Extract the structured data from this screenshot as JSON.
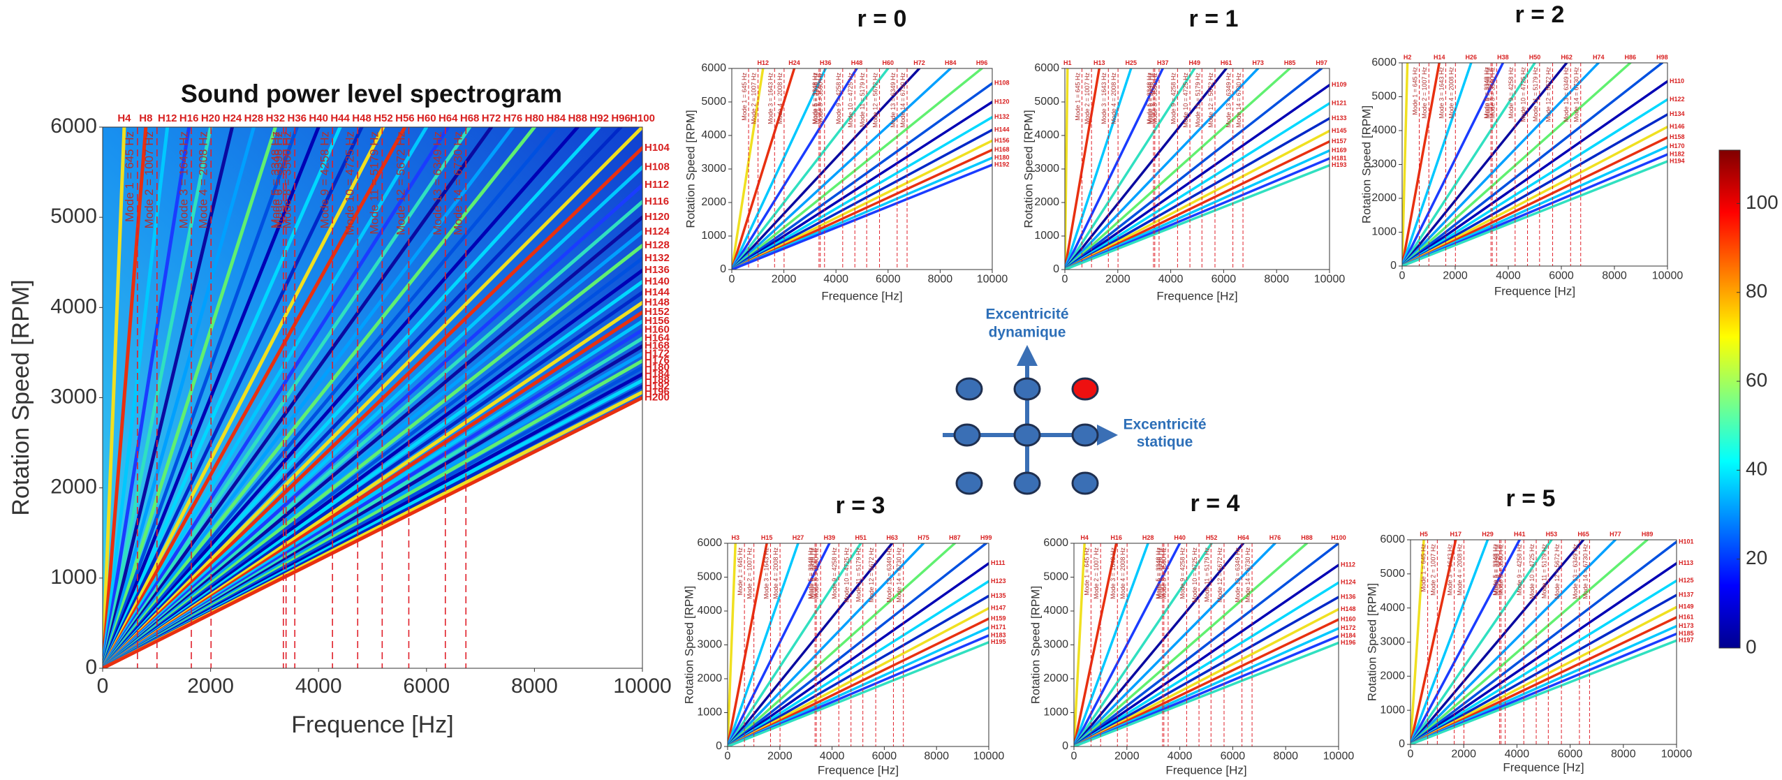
{
  "chart_data": [
    {
      "type": "spectrogram",
      "title": "Sound power level spectrogram",
      "x_label": "Frequence [Hz]",
      "y_label": "Rotation Speed [RPM]",
      "xlim": [
        0,
        10000
      ],
      "ylim": [
        0,
        6000
      ],
      "xticks": [
        0,
        2000,
        4000,
        6000,
        8000,
        10000
      ],
      "yticks": [
        0,
        1000,
        2000,
        3000,
        4000,
        5000,
        6000
      ],
      "orders": [
        4,
        8,
        12,
        16,
        20,
        24,
        28,
        32,
        36,
        40,
        44,
        48,
        52,
        56,
        60,
        64,
        68,
        72,
        76,
        80,
        84,
        88,
        92,
        96,
        100,
        104,
        108,
        112,
        116,
        120,
        124,
        128,
        132,
        136,
        140,
        144,
        148,
        152,
        156,
        160,
        164,
        168,
        172,
        176,
        180,
        184,
        188,
        192,
        196,
        200
      ],
      "order_labels": [
        "H4",
        "H8",
        "H12",
        "H16",
        "H20",
        "H24",
        "H28",
        "H32",
        "H36",
        "H40",
        "H44",
        "H48",
        "H52",
        "H56",
        "H60",
        "H64",
        "H68",
        "H72",
        "H76",
        "H80",
        "H84",
        "H88",
        "H92",
        "H96",
        "H100",
        "H104",
        "H108",
        "H112",
        "H116",
        "H120",
        "H124",
        "H128",
        "H132",
        "H136",
        "H140",
        "H144",
        "H148",
        "H152",
        "H156",
        "H160",
        "H164",
        "H168",
        "H172",
        "H176",
        "H180",
        "H184",
        "H188",
        "H192",
        "H196",
        "H200"
      ],
      "background": true
    },
    {
      "type": "spectrogram",
      "title": "r = 0",
      "x_label": "Frequence [Hz]",
      "y_label": "Rotation Speed [RPM]",
      "xlim": [
        0,
        10000
      ],
      "ylim": [
        0,
        6000
      ],
      "xticks": [
        0,
        2000,
        4000,
        6000,
        8000,
        10000
      ],
      "yticks": [
        0,
        1000,
        2000,
        3000,
        4000,
        5000,
        6000
      ],
      "orders": [
        12,
        24,
        36,
        48,
        60,
        72,
        84,
        96,
        108,
        120,
        132,
        144,
        156,
        168,
        180,
        192
      ],
      "order_labels": [
        "H12",
        "H24",
        "H36",
        "H48",
        "H60",
        "H72",
        "H84",
        "H96",
        "H108",
        "H120",
        "H132",
        "H144",
        "H156",
        "H168",
        "H180",
        "H192"
      ],
      "background": false
    },
    {
      "type": "spectrogram",
      "title": "r = 1",
      "x_label": "Frequence [Hz]",
      "y_label": "Rotation Speed [RPM]",
      "xlim": [
        0,
        10000
      ],
      "ylim": [
        0,
        6000
      ],
      "xticks": [
        0,
        2000,
        4000,
        6000,
        8000,
        10000
      ],
      "yticks": [
        0,
        1000,
        2000,
        3000,
        4000,
        5000,
        6000
      ],
      "orders": [
        1,
        13,
        25,
        37,
        49,
        61,
        73,
        85,
        97,
        109,
        121,
        133,
        145,
        157,
        169,
        181,
        193
      ],
      "order_labels": [
        "H1",
        "H13",
        "H25",
        "H37",
        "H49",
        "H61",
        "H73",
        "H85",
        "H97",
        "H109",
        "H121",
        "H133",
        "H145",
        "H157",
        "H169",
        "H181",
        "H193"
      ],
      "background": false
    },
    {
      "type": "spectrogram",
      "title": "r = 2",
      "x_label": "Frequence [Hz]",
      "y_label": "Rotation Speed [RPM]",
      "xlim": [
        0,
        10000
      ],
      "ylim": [
        0,
        6000
      ],
      "xticks": [
        0,
        2000,
        4000,
        6000,
        8000,
        10000
      ],
      "yticks": [
        0,
        1000,
        2000,
        3000,
        4000,
        5000,
        6000
      ],
      "orders": [
        2,
        14,
        26,
        38,
        50,
        62,
        74,
        86,
        98,
        110,
        122,
        134,
        146,
        158,
        170,
        182,
        194
      ],
      "order_labels": [
        "H2",
        "H14",
        "H26",
        "H38",
        "H50",
        "H62",
        "H74",
        "H86",
        "H98",
        "H110",
        "H122",
        "H134",
        "H146",
        "H158",
        "H170",
        "H182",
        "H194"
      ],
      "background": false
    },
    {
      "type": "spectrogram",
      "title": "r = 3",
      "x_label": "Frequence [Hz]",
      "y_label": "Rotation Speed [RPM]",
      "xlim": [
        0,
        10000
      ],
      "ylim": [
        0,
        6000
      ],
      "xticks": [
        0,
        2000,
        4000,
        6000,
        8000,
        10000
      ],
      "yticks": [
        0,
        1000,
        2000,
        3000,
        4000,
        5000,
        6000
      ],
      "orders": [
        3,
        15,
        27,
        39,
        51,
        63,
        75,
        87,
        99,
        111,
        123,
        135,
        147,
        159,
        171,
        183,
        195
      ],
      "order_labels": [
        "H3",
        "H15",
        "H27",
        "H39",
        "H51",
        "H63",
        "H75",
        "H87",
        "H99",
        "H111",
        "H123",
        "H135",
        "H147",
        "H159",
        "H171",
        "H183",
        "H195"
      ],
      "background": false
    },
    {
      "type": "spectrogram",
      "title": "r = 4",
      "x_label": "Frequence [Hz]",
      "y_label": "Rotation Speed [RPM]",
      "xlim": [
        0,
        10000
      ],
      "ylim": [
        0,
        6000
      ],
      "xticks": [
        0,
        2000,
        4000,
        6000,
        8000,
        10000
      ],
      "yticks": [
        0,
        1000,
        2000,
        3000,
        4000,
        5000,
        6000
      ],
      "orders": [
        4,
        16,
        28,
        40,
        52,
        64,
        76,
        88,
        100,
        112,
        124,
        136,
        148,
        160,
        172,
        184,
        196
      ],
      "order_labels": [
        "H4",
        "H16",
        "H28",
        "H40",
        "H52",
        "H64",
        "H76",
        "H88",
        "H100",
        "H112",
        "H124",
        "H136",
        "H148",
        "H160",
        "H172",
        "H184",
        "H196"
      ],
      "background": false
    },
    {
      "type": "spectrogram",
      "title": "r = 5",
      "x_label": "Frequence [Hz]",
      "y_label": "Rotation Speed [RPM]",
      "xlim": [
        0,
        10000
      ],
      "ylim": [
        0,
        6000
      ],
      "xticks": [
        0,
        2000,
        4000,
        6000,
        8000,
        10000
      ],
      "yticks": [
        0,
        1000,
        2000,
        3000,
        4000,
        5000,
        6000
      ],
      "orders": [
        5,
        17,
        29,
        41,
        53,
        65,
        77,
        89,
        101,
        113,
        125,
        137,
        149,
        161,
        173,
        185,
        197
      ],
      "order_labels": [
        "H5",
        "H17",
        "H29",
        "H41",
        "H53",
        "H65",
        "H77",
        "H89",
        "H101",
        "H113",
        "H125",
        "H137",
        "H149",
        "H161",
        "H173",
        "H185",
        "H197"
      ],
      "background": false
    }
  ],
  "modes": {
    "values": [
      645,
      1007,
      1643,
      2008,
      3348,
      3398,
      3560,
      4258,
      4725,
      5179,
      5672,
      6349,
      6730
    ],
    "labels": [
      "Mode 1 = 645 Hz",
      "Mode 2 = 1007 Hz",
      "Mode 3 = 1643 Hz",
      "Mode 4 = 2008 Hz",
      "Mode 5 = 3348 Hz",
      "Mode 6 = 3398 Hz",
      "Mode 8 = 3560 Hz",
      "Mode 9 = 4258 Hz",
      "Mode 10 = 4725 Hz",
      "Mode 11 = 5179 Hz",
      "Mode 12 = 5672 Hz",
      "Mode 13 = 6349 Hz",
      "Mode 14 = 6730 Hz"
    ],
    "color": "#e0202a"
  },
  "line_colors": [
    "#f0e020",
    "#e83010",
    "#00c8ff",
    "#1a3cff",
    "#30e0c0",
    "#0a0aa0",
    "#00a0ff",
    "#60f070",
    "#0050e0",
    "#0000b4",
    "#00d8ff",
    "#0028c8"
  ],
  "colorbar": {
    "lim": [
      0,
      112
    ],
    "ticks": [
      0,
      20,
      40,
      60,
      80,
      100
    ],
    "colors": [
      "#00008f",
      "#0000ff",
      "#0080ff",
      "#00ffff",
      "#80ff80",
      "#ffff00",
      "#ff8000",
      "#ff0000",
      "#800000"
    ]
  },
  "diagram": {
    "dynamic_label": [
      "Excentricité",
      "dynamique"
    ],
    "static_label": [
      "Excentricité",
      "statique"
    ]
  }
}
